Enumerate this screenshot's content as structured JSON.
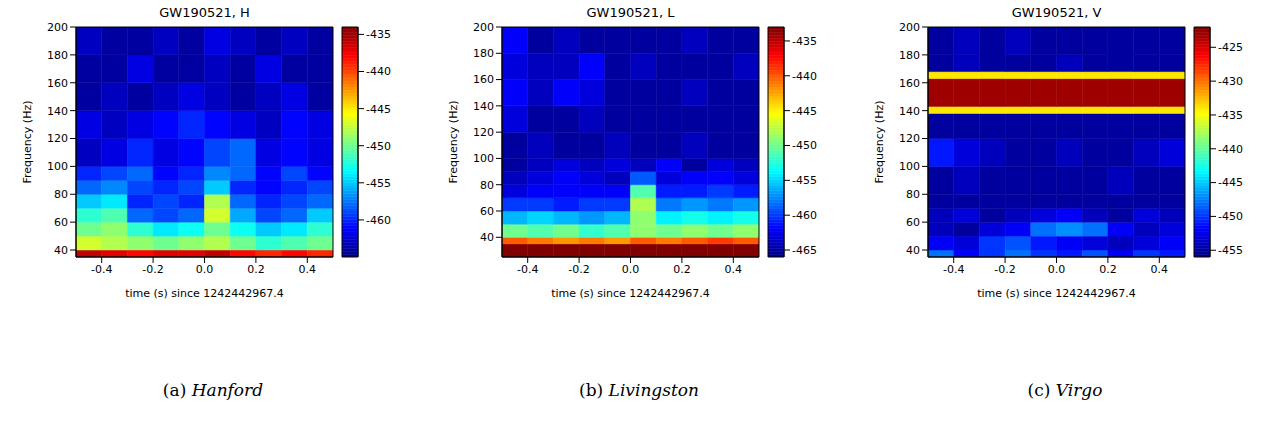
{
  "chart_data": [
    {
      "type": "heatmap",
      "title": "GW190521, H",
      "x_label": "time (s) since 1242442967.4",
      "y_label": "Frequency (Hz)",
      "xlim": [
        -0.5,
        0.5
      ],
      "xticks": [
        -0.4,
        -0.2,
        {
          "value": 0,
          "label": "0.0"
        },
        0.2,
        0.4
      ],
      "ylim": [
        35,
        200
      ],
      "yticks": [
        40,
        60,
        80,
        100,
        120,
        140,
        160,
        180,
        200
      ],
      "time_edges": [
        -0.5,
        -0.4,
        -0.3,
        -0.2,
        -0.1,
        0,
        0.1,
        0.2,
        0.3,
        0.4,
        0.5
      ],
      "freq_edges": [
        35,
        40,
        50,
        60,
        70,
        80,
        90,
        100,
        120,
        140,
        160,
        180,
        200
      ],
      "cells": [
        [
          -436,
          -437,
          -438,
          -437,
          -437,
          -436,
          -438,
          -439,
          -438,
          -439
        ],
        [
          -447,
          -448,
          -449,
          -450,
          -449,
          -448,
          -450,
          -452,
          -451,
          -450
        ],
        [
          -450,
          -449,
          -452,
          -454,
          -453,
          -450,
          -453,
          -455,
          -454,
          -452
        ],
        [
          -452,
          -451,
          -458,
          -459,
          -458,
          -447,
          -456,
          -459,
          -458,
          -455
        ],
        [
          -455,
          -454,
          -460,
          -459,
          -460,
          -448,
          -458,
          -460,
          -459,
          -458
        ],
        [
          -458,
          -457,
          -459,
          -460,
          -459,
          -455,
          -460,
          -461,
          -460,
          -459
        ],
        [
          -460,
          -459,
          -458,
          -461,
          -460,
          -457,
          -458,
          -461,
          -459,
          -461
        ],
        [
          -463,
          -462,
          -460,
          -462,
          -461,
          -459,
          -458,
          -462,
          -461,
          -462
        ],
        [
          -462,
          -463,
          -462,
          -461,
          -460,
          -461,
          -462,
          -463,
          -461,
          -462
        ],
        [
          -464,
          -463,
          -464,
          -463,
          -462,
          -463,
          -464,
          -463,
          -462,
          -464
        ],
        [
          -464,
          -464,
          -462,
          -464,
          -464,
          -463,
          -464,
          -462,
          -464,
          -464
        ],
        [
          -463,
          -464,
          -464,
          -463,
          -464,
          -462,
          -463,
          -464,
          -463,
          -464
        ]
      ],
      "colorbar": {
        "range": [
          -465,
          -434
        ],
        "ticks": [
          -460,
          -455,
          -450,
          -445,
          -440,
          -435
        ]
      },
      "caption": {
        "label": "(a)",
        "name": "Hanford"
      }
    },
    {
      "type": "heatmap",
      "title": "GW190521, L",
      "x_label": "time (s) since 1242442967.4",
      "y_label": "Frequency (Hz)",
      "xlim": [
        -0.5,
        0.5
      ],
      "xticks": [
        -0.4,
        -0.2,
        {
          "value": 0,
          "label": "0.0"
        },
        0.2,
        0.4
      ],
      "ylim": [
        25,
        200
      ],
      "yticks": [
        40,
        60,
        80,
        100,
        120,
        140,
        160,
        180,
        200
      ],
      "time_edges": [
        -0.5,
        -0.4,
        -0.3,
        -0.2,
        -0.1,
        0,
        0.1,
        0.2,
        0.3,
        0.4,
        0.5
      ],
      "freq_edges": [
        25,
        35,
        40,
        50,
        60,
        70,
        80,
        90,
        100,
        120,
        140,
        160,
        180,
        200
      ],
      "cells": [
        [
          -433,
          -433,
          -433,
          -433,
          -433,
          -433,
          -433,
          -433,
          -433,
          -433
        ],
        [
          -440,
          -441,
          -442,
          -441,
          -442,
          -440,
          -441,
          -440,
          -439,
          -440
        ],
        [
          -450,
          -451,
          -450,
          -452,
          -451,
          -449,
          -450,
          -449,
          -450,
          -449
        ],
        [
          -456,
          -455,
          -456,
          -457,
          -456,
          -449,
          -454,
          -453,
          -454,
          -453
        ],
        [
          -460,
          -460,
          -461,
          -460,
          -460,
          -448,
          -458,
          -457,
          -458,
          -457
        ],
        [
          -463,
          -462,
          -462,
          -462,
          -462,
          -451,
          -461,
          -461,
          -460,
          -461
        ],
        [
          -464,
          -463,
          -462,
          -463,
          -464,
          -459,
          -463,
          -462,
          -462,
          -463
        ],
        [
          -465,
          -464,
          -463,
          -464,
          -463,
          -464,
          -462,
          -465,
          -463,
          -464
        ],
        [
          -465,
          -464,
          -465,
          -465,
          -464,
          -465,
          -465,
          -464,
          -465,
          -465
        ],
        [
          -463,
          -465,
          -465,
          -464,
          -465,
          -465,
          -465,
          -465,
          -465,
          -465
        ],
        [
          -462,
          -464,
          -462,
          -463,
          -465,
          -465,
          -465,
          -464,
          -465,
          -465
        ],
        [
          -463,
          -464,
          -464,
          -462,
          -465,
          -464,
          -465,
          -465,
          -465,
          -464
        ],
        [
          -462,
          -465,
          -464,
          -465,
          -465,
          -465,
          -465,
          -464,
          -465,
          -465
        ]
      ],
      "colorbar": {
        "range": [
          -466,
          -433
        ],
        "ticks": [
          -465,
          -460,
          -455,
          -450,
          -445,
          -440,
          -435
        ]
      },
      "caption": {
        "label": "(b)",
        "name": "Livingston"
      }
    },
    {
      "type": "heatmap",
      "title": "GW190521, V",
      "x_label": "time (s) since 1242442967.4",
      "y_label": "Frequency (Hz)",
      "xlim": [
        -0.5,
        0.5
      ],
      "xticks": [
        -0.4,
        -0.2,
        {
          "value": 0,
          "label": "0.0"
        },
        0.2,
        0.4
      ],
      "ylim": [
        35,
        200
      ],
      "yticks": [
        40,
        60,
        80,
        100,
        120,
        140,
        160,
        180,
        200
      ],
      "time_edges": [
        -0.5,
        -0.4,
        -0.3,
        -0.2,
        -0.1,
        0,
        0.1,
        0.2,
        0.3,
        0.4,
        0.5
      ],
      "freq_edges": [
        35,
        40,
        50,
        60,
        70,
        80,
        100,
        120,
        138,
        143,
        163,
        168,
        180,
        200
      ],
      "cells": [
        [
          -448,
          -452,
          -450,
          -448,
          -450,
          -451,
          -449,
          -452,
          -450,
          -451
        ],
        [
          -452,
          -453,
          -450,
          -449,
          -451,
          -452,
          -453,
          -454,
          -453,
          -452
        ],
        [
          -454,
          -455,
          -453,
          -452,
          -448,
          -447,
          -448,
          -452,
          -454,
          -453
        ],
        [
          -454,
          -453,
          -455,
          -454,
          -453,
          -452,
          -454,
          -455,
          -453,
          -454
        ],
        [
          -455,
          -455,
          -455,
          -455,
          -455,
          -455,
          -455,
          -455,
          -455,
          -455
        ],
        [
          -455,
          -454,
          -455,
          -455,
          -455,
          -455,
          -455,
          -454,
          -455,
          -455
        ],
        [
          -451,
          -453,
          -454,
          -455,
          -455,
          -454,
          -455,
          -455,
          -454,
          -453
        ],
        [
          -455,
          -455,
          -455,
          -455,
          -455,
          -455,
          -455,
          -455,
          -455,
          -455
        ],
        [
          -434,
          -434,
          -434,
          -434,
          -434,
          -434,
          -434,
          -434,
          -434,
          -434
        ],
        [
          -423,
          -423,
          -423,
          -423,
          -423,
          -423,
          -423,
          -423,
          -423,
          -423
        ],
        [
          -434,
          -434,
          -434,
          -434,
          -434,
          -434,
          -434,
          -434,
          -434,
          -434
        ],
        [
          -455,
          -454,
          -455,
          -455,
          -455,
          -454,
          -455,
          -455,
          -455,
          -455
        ],
        [
          -455,
          -454,
          -455,
          -454,
          -455,
          -455,
          -455,
          -455,
          -455,
          -455
        ]
      ],
      "colorbar": {
        "range": [
          -456,
          -422
        ],
        "ticks": [
          -455,
          -450,
          -445,
          -440,
          -435,
          -430,
          -425
        ]
      },
      "caption": {
        "label": "(c)",
        "name": "Virgo"
      }
    }
  ]
}
